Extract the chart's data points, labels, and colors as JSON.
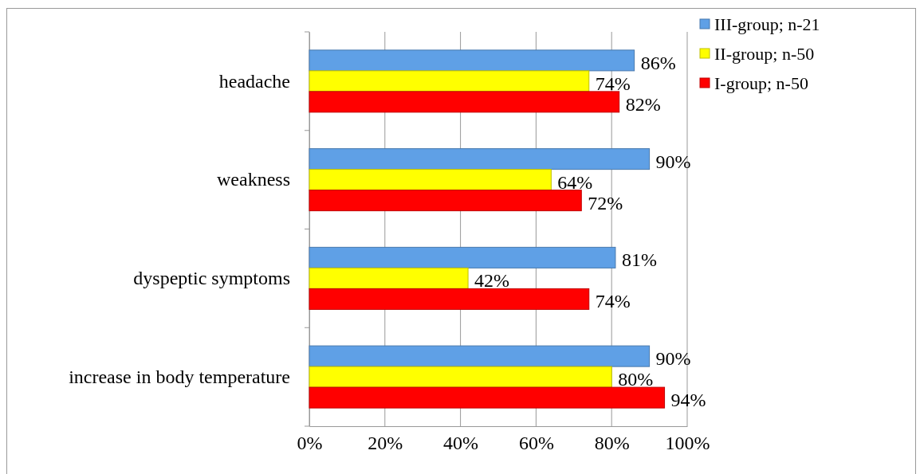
{
  "chart_data": {
    "type": "bar",
    "orientation": "horizontal",
    "categories": [
      "headache",
      "weakness",
      "dyspeptic symptoms",
      "increase in body temperature"
    ],
    "series": [
      {
        "name": "III-group; n-21",
        "color": "#5fa0e6",
        "values": [
          86,
          90,
          81,
          90
        ],
        "value_labels": [
          "86%",
          "90%",
          "81%",
          "90%"
        ]
      },
      {
        "name": "II-group; n-50",
        "color": "#ffff00",
        "values": [
          74,
          64,
          42,
          80
        ],
        "value_labels": [
          "74%",
          "64%",
          "42%",
          "80%"
        ]
      },
      {
        "name": "I-group; n-50",
        "color": "#ff0000",
        "values": [
          82,
          72,
          74,
          94
        ],
        "value_labels": [
          "82%",
          "72%",
          "74%",
          "94%"
        ]
      }
    ],
    "xlim": [
      0,
      100
    ],
    "xticks": [
      {
        "value": 0,
        "label": "0%"
      },
      {
        "value": 20,
        "label": "20%"
      },
      {
        "value": 40,
        "label": "40%"
      },
      {
        "value": 60,
        "label": "60%"
      },
      {
        "value": 80,
        "label": "80%"
      },
      {
        "value": 100,
        "label": "100%"
      }
    ],
    "grid": "x",
    "legend": "top right"
  }
}
